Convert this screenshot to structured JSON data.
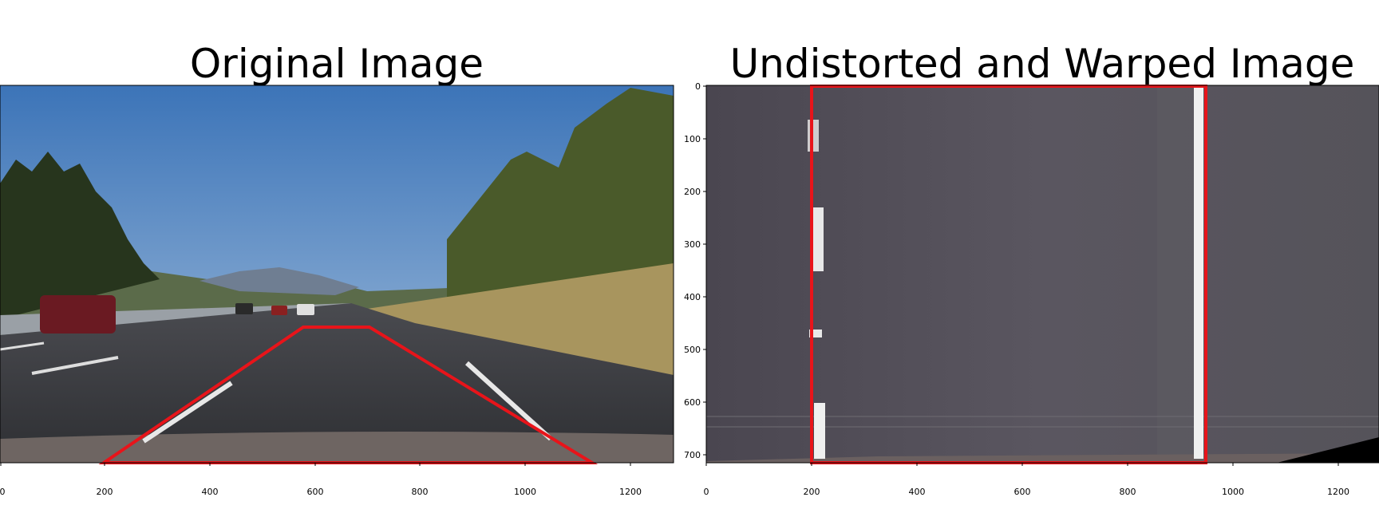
{
  "panels": [
    {
      "title": "Original Image",
      "x_ticks": [
        "0",
        "200",
        "400",
        "600",
        "800",
        "1000",
        "1200"
      ],
      "y_ticks": []
    },
    {
      "title": "Undistorted and Warped Image",
      "x_ticks": [
        "0",
        "200",
        "400",
        "600",
        "800",
        "1000",
        "1200"
      ],
      "y_ticks": [
        "0",
        "100",
        "200",
        "300",
        "400",
        "500",
        "600",
        "700"
      ]
    }
  ],
  "colors": {
    "overlay": "#e8141a",
    "sky": "#4a82c4",
    "road": "#3a3b40",
    "grass": "#a8955e"
  }
}
